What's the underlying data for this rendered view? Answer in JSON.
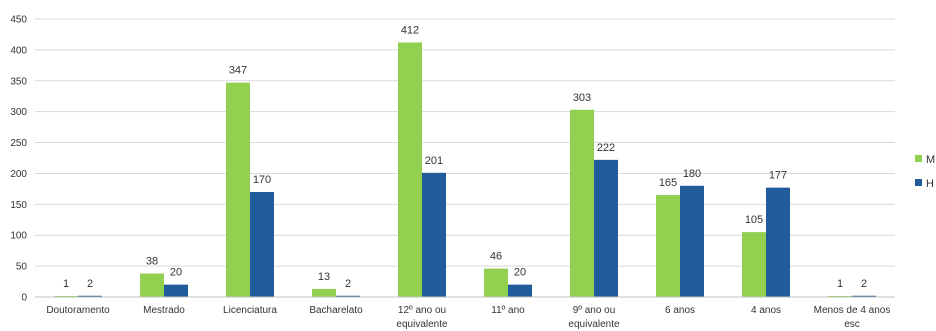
{
  "chart_data": {
    "type": "bar",
    "categories": [
      [
        "Doutoramento"
      ],
      [
        "Mestrado"
      ],
      [
        "Licenciatura"
      ],
      [
        "Bacharelato"
      ],
      [
        "12º ano ou",
        "equivalente"
      ],
      [
        "11º ano"
      ],
      [
        "9º ano ou",
        "equivalente"
      ],
      [
        "6 anos"
      ],
      [
        "4 anos"
      ],
      [
        "Menos de 4 anos",
        "esc"
      ]
    ],
    "series": [
      {
        "name": "M",
        "color": "#92d050",
        "values": [
          1,
          38,
          347,
          13,
          412,
          46,
          303,
          165,
          105,
          1
        ]
      },
      {
        "name": "H",
        "color": "#1f5c99",
        "values": [
          2,
          20,
          170,
          2,
          201,
          20,
          222,
          180,
          177,
          2
        ]
      }
    ],
    "yticks": [
      0,
      50,
      100,
      150,
      200,
      250,
      300,
      350,
      400,
      450
    ],
    "ylim": [
      0,
      450
    ],
    "grid": true,
    "legend_position": "right"
  }
}
